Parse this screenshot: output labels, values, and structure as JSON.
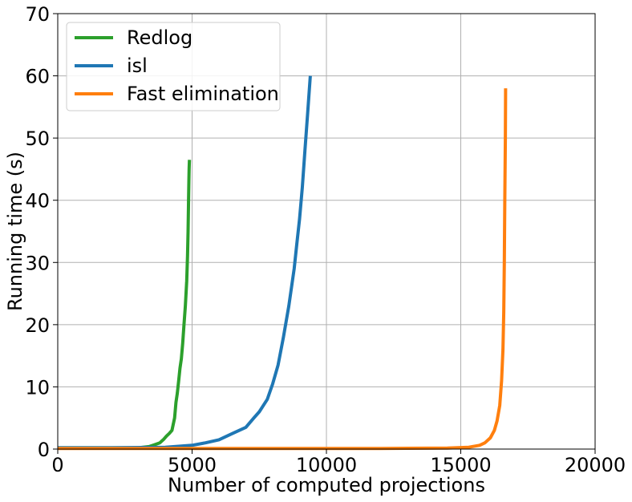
{
  "chart_data": {
    "type": "line",
    "title": "",
    "xlabel": "Number of computed projections",
    "ylabel": "Running time (s)",
    "xlim": [
      0,
      20000
    ],
    "ylim": [
      0,
      70
    ],
    "xticks": [
      0,
      5000,
      10000,
      15000,
      20000
    ],
    "xtick_labels": [
      "0",
      "5000",
      "10000",
      "15000",
      "20000"
    ],
    "yticks": [
      0,
      10,
      20,
      30,
      40,
      50,
      60,
      70
    ],
    "ytick_labels": [
      "0",
      "10",
      "20",
      "30",
      "40",
      "50",
      "60",
      "70"
    ],
    "grid": true,
    "legend_position": "top-left",
    "series": [
      {
        "name": "Redlog",
        "color": "#2ca02c",
        "x": [
          0,
          2000,
          3000,
          3400,
          3600,
          3800,
          3950,
          4050,
          4150,
          4250,
          4350,
          4400,
          4450,
          4500,
          4550,
          4600,
          4650,
          4700,
          4750,
          4800,
          4830,
          4850,
          4870,
          4880,
          4890,
          4900
        ],
        "y": [
          0.2,
          0.2,
          0.2,
          0.4,
          0.7,
          1.0,
          1.6,
          2.1,
          2.5,
          3.0,
          5.0,
          7.5,
          9.0,
          11.0,
          13.0,
          14.5,
          17.0,
          20.0,
          23.0,
          27.0,
          31.0,
          35.0,
          40.0,
          43.0,
          45.0,
          46.5
        ]
      },
      {
        "name": "isl",
        "color": "#1f77b4",
        "x": [
          0,
          2000,
          4000,
          5000,
          5500,
          6000,
          6500,
          7000,
          7300,
          7500,
          7800,
          8000,
          8200,
          8400,
          8600,
          8800,
          8900,
          9000,
          9100,
          9200,
          9300,
          9400
        ],
        "y": [
          0.2,
          0.2,
          0.3,
          0.6,
          1.0,
          1.5,
          2.5,
          3.5,
          5.0,
          6.0,
          8.0,
          10.5,
          13.5,
          18.0,
          23.0,
          29.0,
          33.0,
          37.0,
          42.0,
          48.0,
          54.0,
          60.0
        ]
      },
      {
        "name": "Fast elimination",
        "color": "#ff7f0e",
        "x": [
          0,
          8000,
          12000,
          14500,
          15300,
          15700,
          15900,
          16100,
          16250,
          16350,
          16450,
          16520,
          16570,
          16600,
          16620,
          16640,
          16660,
          16670
        ],
        "y": [
          0.1,
          0.1,
          0.1,
          0.15,
          0.3,
          0.6,
          1.0,
          1.8,
          3.0,
          4.5,
          7.0,
          11.0,
          16.0,
          22.0,
          30.0,
          40.0,
          50.0,
          58.0
        ]
      }
    ]
  }
}
